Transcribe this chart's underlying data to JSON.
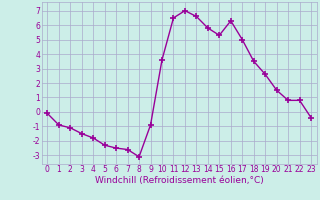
{
  "x": [
    0,
    1,
    2,
    3,
    4,
    5,
    6,
    7,
    8,
    9,
    10,
    11,
    12,
    13,
    14,
    15,
    16,
    17,
    18,
    19,
    20,
    21,
    22,
    23
  ],
  "y": [
    -0.1,
    -0.9,
    -1.1,
    -1.5,
    -1.8,
    -2.3,
    -2.5,
    -2.6,
    -3.1,
    -0.9,
    3.6,
    6.5,
    7.0,
    6.6,
    5.8,
    5.3,
    6.3,
    5.0,
    3.5,
    2.6,
    1.5,
    0.8,
    0.8,
    -0.4
  ],
  "line_color": "#990099",
  "marker": "+",
  "marker_size": 5,
  "linewidth": 1.0,
  "xlabel": "Windchill (Refroidissement éolien,°C)",
  "xlabel_fontsize": 6.5,
  "xtick_labels": [
    "0",
    "1",
    "2",
    "3",
    "4",
    "5",
    "6",
    "7",
    "8",
    "9",
    "10",
    "11",
    "12",
    "13",
    "14",
    "15",
    "16",
    "17",
    "18",
    "19",
    "20",
    "21",
    "22",
    "23"
  ],
  "ytick_values": [
    -3,
    -2,
    -1,
    0,
    1,
    2,
    3,
    4,
    5,
    6,
    7
  ],
  "ylim": [
    -3.6,
    7.6
  ],
  "xlim": [
    -0.5,
    23.5
  ],
  "bg_color": "#cceee8",
  "grid_color": "#aaaacc",
  "tick_color": "#990099",
  "tick_fontsize": 5.5,
  "markeredgewidth": 1.2
}
